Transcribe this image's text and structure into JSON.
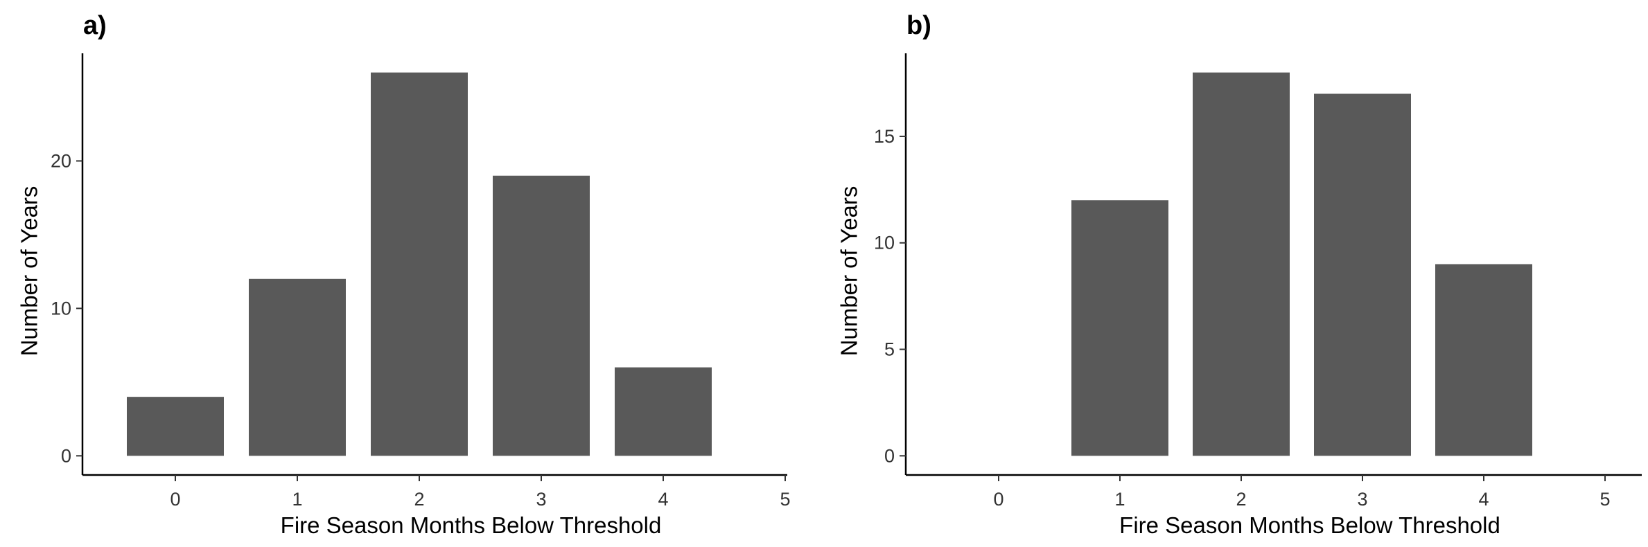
{
  "panels": [
    {
      "label": "a)"
    },
    {
      "label": "b)"
    }
  ],
  "chart_data": [
    {
      "type": "bar",
      "title": "",
      "xlabel": "Fire Season Months Below Threshold",
      "ylabel": "Number of Years",
      "categories": [
        "0",
        "1",
        "2",
        "3",
        "4",
        "5"
      ],
      "values": [
        4,
        12,
        26,
        19,
        6,
        0
      ],
      "xticks": [
        "0",
        "1",
        "2",
        "3",
        "4",
        "5"
      ],
      "yticks": [
        "0",
        "10",
        "20"
      ],
      "ytick_values": [
        0,
        10,
        20
      ],
      "ylim": [
        -1.3,
        27.3
      ],
      "grid": false,
      "legend": "none",
      "bar_color": "#595959"
    },
    {
      "type": "bar",
      "title": "",
      "xlabel": "Fire Season Months Below Threshold",
      "ylabel": "Number of Years",
      "categories": [
        "0",
        "1",
        "2",
        "3",
        "4",
        "5"
      ],
      "values": [
        0,
        12,
        18,
        17,
        9,
        0
      ],
      "xticks": [
        "0",
        "1",
        "2",
        "3",
        "4",
        "5"
      ],
      "yticks": [
        "0",
        "5",
        "10",
        "15"
      ],
      "ytick_values": [
        0,
        5,
        10,
        15
      ],
      "ylim": [
        -0.9,
        18.9
      ],
      "grid": false,
      "legend": "none",
      "bar_color": "#595959"
    }
  ]
}
